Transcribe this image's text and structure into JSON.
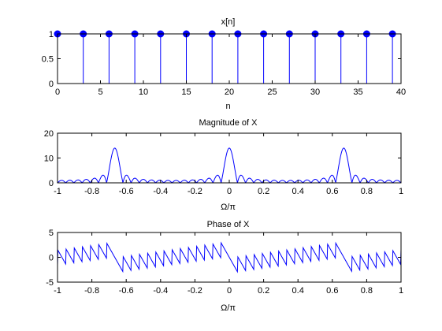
{
  "figure": {
    "background": "#ffffff",
    "plot_color": "#0000ff"
  },
  "chart_data": [
    {
      "type": "stem",
      "title": "x[n]",
      "xlabel": "n",
      "ylabel": "",
      "xlim": [
        0,
        40
      ],
      "ylim": [
        0,
        1
      ],
      "xticks": [
        0,
        5,
        10,
        15,
        20,
        25,
        30,
        35,
        40
      ],
      "xtick_labels": [
        "0",
        "5",
        "10",
        "15",
        "20",
        "25",
        "30",
        "35",
        "40"
      ],
      "yticks": [
        0,
        0.5,
        1
      ],
      "ytick_labels": [
        "0",
        "0.5",
        "1"
      ],
      "grid": false,
      "series": [
        {
          "x": [
            0,
            3,
            6,
            9,
            12,
            15,
            18,
            21,
            24,
            27,
            30,
            33,
            36,
            39
          ],
          "y": [
            1,
            1,
            1,
            1,
            1,
            1,
            1,
            1,
            1,
            1,
            1,
            1,
            1,
            1
          ]
        }
      ]
    },
    {
      "type": "line",
      "title": "Magnitude of X",
      "xlabel": "Ω/π",
      "ylabel": "",
      "xlim": [
        -1,
        1
      ],
      "ylim": [
        0,
        20
      ],
      "xticks": [
        -1,
        -0.8,
        -0.6,
        -0.4,
        -0.2,
        0,
        0.2,
        0.4,
        0.6,
        0.8,
        1
      ],
      "xtick_labels": [
        "-1",
        "-0.8",
        "-0.6",
        "-0.4",
        "-0.2",
        "0",
        "0.2",
        "0.4",
        "0.6",
        "0.8",
        "1"
      ],
      "yticks": [
        0,
        10,
        20
      ],
      "ytick_labels": [
        "0",
        "10",
        "20"
      ],
      "grid": false,
      "series": [
        {
          "function": "dtft_magnitude",
          "n": [
            0,
            3,
            6,
            9,
            12,
            15,
            18,
            21,
            24,
            27,
            30,
            33,
            36,
            39
          ],
          "samples": 801
        }
      ]
    },
    {
      "type": "line",
      "title": "Phase of X",
      "xlabel": "Ω/π",
      "ylabel": "",
      "xlim": [
        -1,
        1
      ],
      "ylim": [
        -5,
        5
      ],
      "xticks": [
        -1,
        -0.8,
        -0.6,
        -0.4,
        -0.2,
        0,
        0.2,
        0.4,
        0.6,
        0.8,
        1
      ],
      "xtick_labels": [
        "-1",
        "-0.8",
        "-0.6",
        "-0.4",
        "-0.2",
        "0",
        "0.2",
        "0.4",
        "0.6",
        "0.8",
        "1"
      ],
      "yticks": [
        -5,
        0,
        5
      ],
      "ytick_labels": [
        "-5",
        "0",
        "5"
      ],
      "grid": false,
      "series": [
        {
          "function": "dtft_phase",
          "n": [
            0,
            3,
            6,
            9,
            12,
            15,
            18,
            21,
            24,
            27,
            30,
            33,
            36,
            39
          ],
          "samples": 801
        }
      ]
    }
  ]
}
